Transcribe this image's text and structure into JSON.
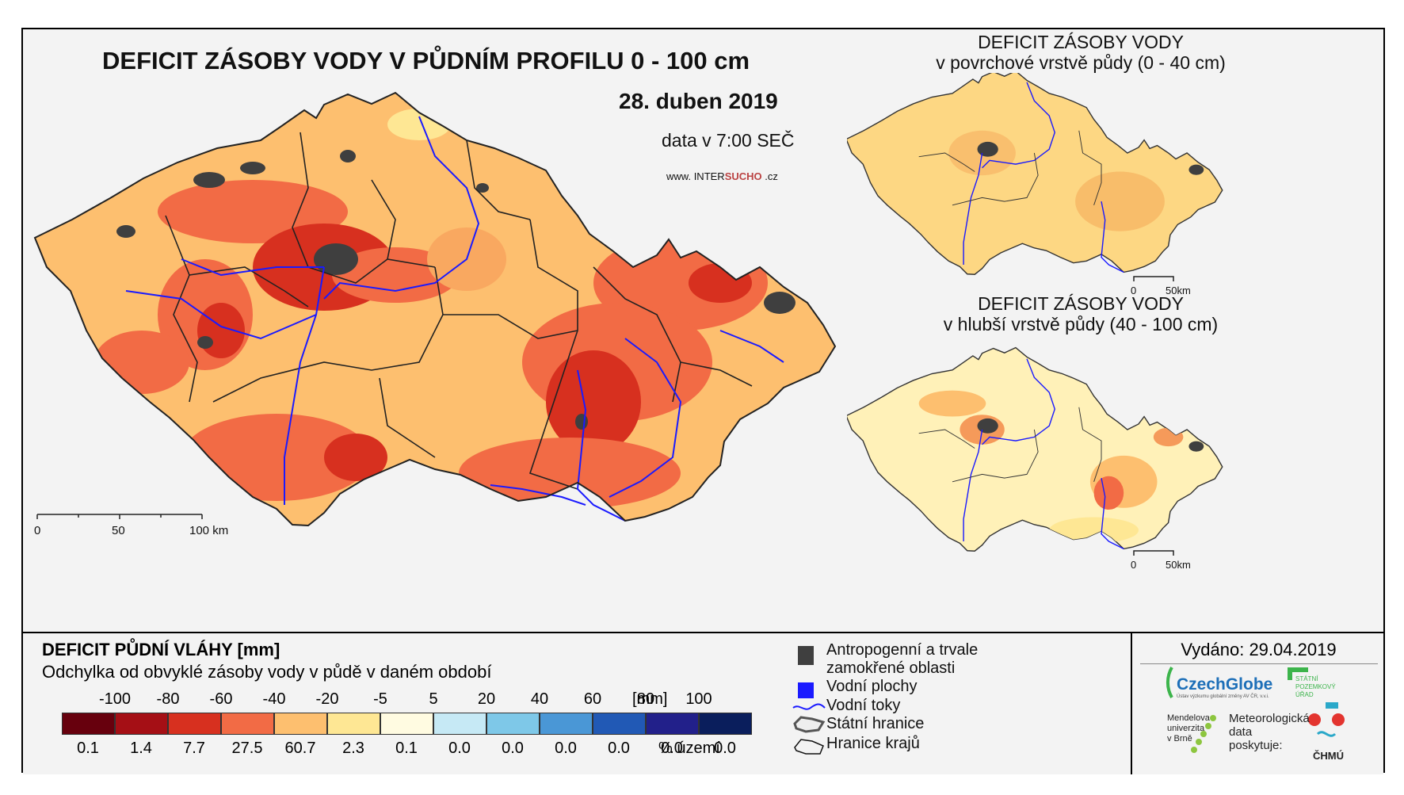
{
  "main_map": {
    "title": "DEFICIT ZÁSOBY VODY V PŮDNÍM PROFILU 0 - 100 cm",
    "date": "28. duben 2019",
    "time": "data v 7:00 SEČ",
    "website_prefix": "www.",
    "website_brand_part1": "INTER",
    "website_brand_part2": "SUCHO",
    "website_suffix": ".cz",
    "scale_labels": [
      "0",
      "50",
      "100 km"
    ]
  },
  "inset_top": {
    "title_line1": "DEFICIT ZÁSOBY VODY",
    "title_line2": "v povrchové vrstvě půdy (0 - 40 cm)",
    "scale_labels": [
      "0",
      "50km"
    ]
  },
  "inset_bottom": {
    "title_line1": "DEFICIT ZÁSOBY VODY",
    "title_line2": "v hlubší vrstvě půdy (40 - 100 cm)",
    "scale_labels": [
      "0",
      "50km"
    ]
  },
  "legend": {
    "title": "DEFICIT PŮDNÍ VLÁHY [mm]",
    "subtitle": "Odchylka od obvyklé zásoby vody v půdě v daném období",
    "ticks": [
      "-100",
      "-80",
      "-60",
      "-40",
      "-20",
      "-5",
      "5",
      "20",
      "40",
      "60",
      "80",
      "100"
    ],
    "unit": "[mm]",
    "classes": [
      {
        "color": "#67000d",
        "pct": "0.1"
      },
      {
        "color": "#a50f15",
        "pct": "1.4"
      },
      {
        "color": "#d7301f",
        "pct": "7.7"
      },
      {
        "color": "#f26b45",
        "pct": "27.5"
      },
      {
        "color": "#fdbf6f",
        "pct": "60.7"
      },
      {
        "color": "#fee794",
        "pct": "2.3"
      },
      {
        "color": "#fffbe1",
        "pct": "0.1"
      },
      {
        "color": "#c6e9f5",
        "pct": "0.0"
      },
      {
        "color": "#7ec8e8",
        "pct": "0.0"
      },
      {
        "color": "#4a97d6",
        "pct": "0.0"
      },
      {
        "color": "#2159b5",
        "pct": "0.0"
      },
      {
        "color": "#22208a",
        "pct": "0.0"
      },
      {
        "color": "#0a1e5c",
        "pct": "0.0"
      }
    ],
    "pct_unit": "% území"
  },
  "symbols": {
    "anthropogenic_line1": "Antropogenní a trvale",
    "anthropogenic_line2": "zamokřené oblasti",
    "water_bodies": "Vodní plochy",
    "streams": "Vodní toky",
    "state_border": "Státní hranice",
    "region_border": "Hranice krajů"
  },
  "issued": "Vydáno: 29.04.2019",
  "logos": {
    "czechglobe": "CzechGlobe",
    "czechglobe_sub": "Ústav výzkumu globální změny AV ČR, v.v.i.",
    "spu_line1": "STÁTNÍ",
    "spu_line2": "POZEMKOVÝ",
    "spu_line3": "ÚŘAD",
    "mendel_line1": "Mendelova",
    "mendel_line2": "univerzita",
    "mendel_line3": "v Brně",
    "meteo_line1": "Meteorologická",
    "meteo_line2": "data",
    "meteo_line3": "poskytuje:",
    "chmu": "ČHMÚ"
  },
  "colors": {
    "water": "#1a1aff",
    "anthropogenic": "#3f3f3f",
    "border": "#222222"
  }
}
